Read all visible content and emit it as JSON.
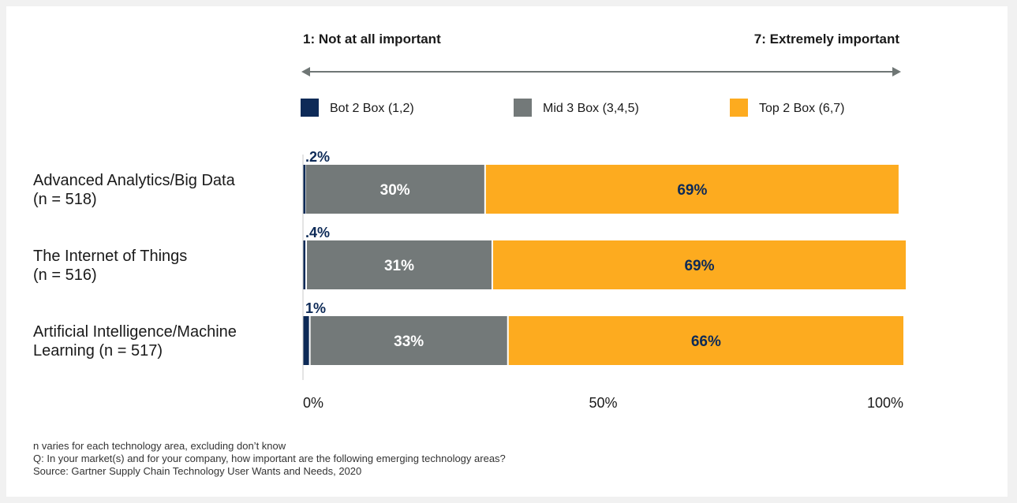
{
  "scale": {
    "left_label": "1: Not at all important",
    "right_label": "7: Extremely important"
  },
  "chart_data": {
    "type": "bar",
    "orientation": "horizontal",
    "stacked": true,
    "categories": [
      [
        "Advanced Analytics/Big Data",
        "(n = 518)"
      ],
      [
        "The Internet of Things",
        "(n = 516)"
      ],
      [
        "Artificial Intelligence/Machine",
        "Learning (n = 517)"
      ]
    ],
    "series": [
      {
        "name": "Bot 2 Box (1,2)",
        "color": "#0d2a57",
        "values": [
          0.2,
          0.4,
          1
        ],
        "labels": [
          ".2%",
          ".4%",
          "1%"
        ]
      },
      {
        "name": "Mid 3 Box (3,4,5)",
        "color": "#737979",
        "values": [
          30,
          31,
          33
        ],
        "labels": [
          "30%",
          "31%",
          "33%"
        ]
      },
      {
        "name": "Top 2 Box (6,7)",
        "color": "#fdab1f",
        "values": [
          69,
          69,
          66
        ],
        "labels": [
          "69%",
          "69%",
          "66%"
        ]
      }
    ],
    "xlim": [
      0,
      100
    ],
    "x_ticks": [
      {
        "value": 0,
        "label": "0%"
      },
      {
        "value": 50,
        "label": "50%"
      },
      {
        "value": 100,
        "label": "100%"
      }
    ],
    "legend_position": "top",
    "grid": false
  },
  "footnotes": [
    "n varies for each technology area, excluding don’t know",
    "Q: In your market(s) and for your company, how important are the following emerging technology areas?",
    "Source: Gartner Supply Chain Technology User Wants and Needs, 2020"
  ]
}
